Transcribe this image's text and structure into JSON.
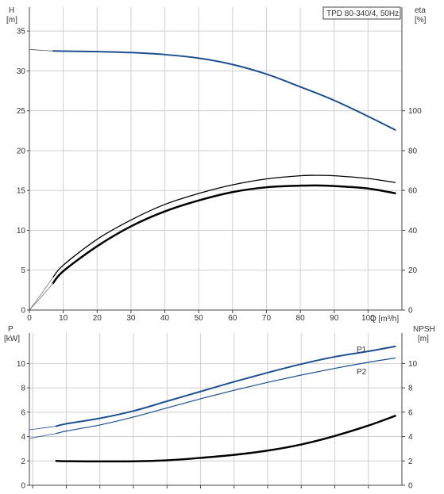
{
  "chart_data": [
    {
      "type": "line",
      "title": "TPD 80-340/4, 50Hz",
      "x_axis": {
        "label": "Q [m³/h]",
        "range": [
          0,
          110
        ],
        "ticks": [
          0,
          10,
          20,
          30,
          40,
          50,
          60,
          70,
          80,
          90,
          100
        ]
      },
      "y_left": {
        "label_line1": "H",
        "label_line2": "[m]",
        "range": [
          0,
          38
        ],
        "ticks": [
          0,
          5,
          10,
          15,
          20,
          25,
          30,
          35
        ]
      },
      "y_right": {
        "label_line1": "eta",
        "label_line2": "[%]",
        "range": [
          0,
          152
        ],
        "ticks": [
          0,
          20,
          40,
          60,
          80,
          100
        ]
      },
      "grid": true,
      "series": [
        {
          "id": "H",
          "axis": "left",
          "color": "#1b4f8f",
          "width": 2,
          "dash": false,
          "x": [
            7,
            10,
            20,
            30,
            40,
            50,
            60,
            70,
            80,
            90,
            100,
            108
          ],
          "y": [
            32.5,
            32.48,
            32.42,
            32.3,
            32.05,
            31.6,
            30.8,
            29.6,
            28.0,
            26.3,
            24.3,
            22.6
          ]
        },
        {
          "id": "H-extension",
          "axis": "left",
          "color": "#555555",
          "width": 0.8,
          "dash": false,
          "x": [
            0,
            3,
            7
          ],
          "y": [
            32.7,
            32.6,
            32.5
          ]
        },
        {
          "id": "eta-thin",
          "axis": "right",
          "color": "#000000",
          "width": 1.3,
          "dash": false,
          "x": [
            7,
            10,
            20,
            30,
            40,
            50,
            60,
            70,
            80,
            85,
            90,
            100,
            108
          ],
          "y": [
            16.5,
            22.5,
            35.5,
            45.2,
            53.0,
            58.5,
            62.8,
            65.8,
            67.4,
            67.6,
            67.4,
            66.0,
            64.0
          ]
        },
        {
          "id": "eta-thick",
          "axis": "right",
          "color": "#000000",
          "width": 2.5,
          "dash": false,
          "x": [
            7,
            10,
            20,
            30,
            40,
            50,
            60,
            70,
            80,
            85,
            90,
            100,
            108
          ],
          "y": [
            13.5,
            19.5,
            32.0,
            42.0,
            49.5,
            55.0,
            59.2,
            61.6,
            62.4,
            62.5,
            62.2,
            61.0,
            58.6
          ]
        },
        {
          "id": "eta-extension",
          "axis": "right",
          "color": "#777777",
          "width": 0.8,
          "dash": false,
          "x": [
            0,
            3.5,
            7
          ],
          "y": [
            0,
            6.5,
            13.5
          ]
        },
        {
          "id": "eta-extension-2",
          "axis": "right",
          "color": "#777777",
          "width": 0.8,
          "dash": false,
          "x": [
            0,
            3.5,
            7
          ],
          "y": [
            0,
            8.0,
            16.5
          ]
        }
      ]
    },
    {
      "type": "line",
      "x_axis": {
        "range": [
          -1,
          110
        ],
        "ticks": [
          0,
          10,
          20,
          30,
          40,
          50,
          60,
          70,
          80,
          90,
          100
        ]
      },
      "y_left": {
        "label_line1": "P",
        "label_line2": "[kW]",
        "range": [
          0,
          12.5
        ],
        "ticks": [
          0,
          2,
          4,
          6,
          8,
          10
        ]
      },
      "y_right": {
        "label_line1": "NPSH",
        "label_line2": "[m]",
        "range": [
          0,
          12.5
        ],
        "ticks": [
          0,
          2,
          4,
          6,
          8,
          10
        ]
      },
      "grid": true,
      "series": [
        {
          "id": "P1",
          "name": "P1",
          "axis": "left",
          "color": "#1b4f8f",
          "width": 2,
          "dash": false,
          "x": [
            7,
            10,
            20,
            30,
            40,
            50,
            60,
            70,
            80,
            90,
            100,
            108
          ],
          "y": [
            4.85,
            5.05,
            5.5,
            6.1,
            6.9,
            7.7,
            8.5,
            9.25,
            9.95,
            10.55,
            11.0,
            11.4
          ]
        },
        {
          "id": "P1-extension",
          "axis": "left",
          "color": "#1b4f8f",
          "width": 0.8,
          "dash": false,
          "x": [
            -1,
            3,
            7
          ],
          "y": [
            4.55,
            4.7,
            4.85
          ]
        },
        {
          "id": "P2",
          "name": "P2",
          "axis": "left",
          "color": "#1b4f8f",
          "width": 1.2,
          "dash": false,
          "x": [
            7,
            10,
            20,
            30,
            40,
            50,
            60,
            70,
            80,
            90,
            100,
            108
          ],
          "y": [
            4.25,
            4.45,
            4.95,
            5.6,
            6.35,
            7.1,
            7.8,
            8.45,
            9.05,
            9.6,
            10.1,
            10.45
          ]
        },
        {
          "id": "P2-extension",
          "axis": "left",
          "color": "#1b4f8f",
          "width": 0.8,
          "dash": false,
          "x": [
            -1,
            3,
            7
          ],
          "y": [
            3.85,
            4.05,
            4.25
          ]
        },
        {
          "id": "NPSH",
          "axis": "right",
          "color": "#000000",
          "width": 2.5,
          "dash": false,
          "x": [
            7,
            10,
            20,
            30,
            40,
            50,
            60,
            70,
            80,
            90,
            100,
            108
          ],
          "y": [
            2.0,
            1.98,
            1.96,
            1.97,
            2.05,
            2.25,
            2.5,
            2.85,
            3.35,
            4.05,
            4.9,
            5.7
          ]
        }
      ],
      "series_labels": [
        {
          "series": "P1",
          "text": "P1",
          "color": "#1b4f8f"
        },
        {
          "series": "P2",
          "text": "P2",
          "color": "#1b4f8f"
        }
      ]
    }
  ]
}
